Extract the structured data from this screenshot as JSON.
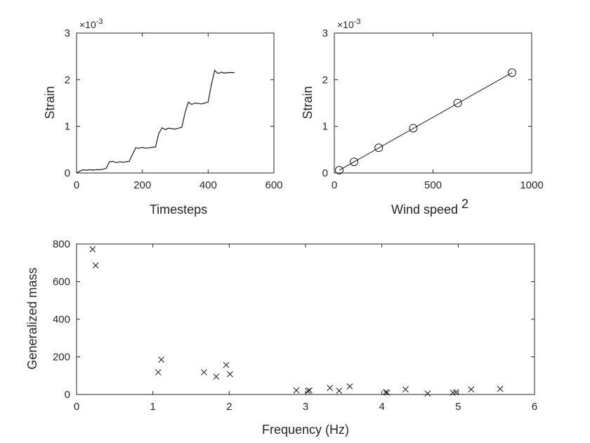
{
  "chart_data": [
    {
      "type": "line",
      "xlabel": "Timesteps",
      "ylabel": "Strain",
      "xlim": [
        0,
        600
      ],
      "ylim": [
        0,
        3
      ],
      "xticks": [
        "0",
        "200",
        "400",
        "600"
      ],
      "yticks": [
        "0",
        "1",
        "2",
        "3"
      ],
      "exponent": {
        "base": "×10",
        "power": "-3"
      },
      "scale": 0.001,
      "series": [
        {
          "x": [
            0,
            10,
            20,
            30,
            40,
            50,
            60,
            70,
            80,
            90,
            100,
            110,
            120,
            130,
            140,
            150,
            160,
            170,
            180,
            190,
            200,
            210,
            220,
            230,
            240,
            250,
            260,
            270,
            280,
            290,
            300,
            310,
            320,
            330,
            340,
            350,
            360,
            370,
            380,
            390,
            400,
            410,
            420,
            430,
            440,
            450,
            460,
            470,
            480
          ],
          "y": [
            0.0,
            0.04,
            0.07,
            0.06,
            0.07,
            0.06,
            0.07,
            0.07,
            0.08,
            0.1,
            0.24,
            0.25,
            0.22,
            0.24,
            0.23,
            0.24,
            0.25,
            0.4,
            0.54,
            0.53,
            0.55,
            0.53,
            0.54,
            0.55,
            0.56,
            0.85,
            0.97,
            0.93,
            0.96,
            0.95,
            0.94,
            0.96,
            0.98,
            1.3,
            1.52,
            1.47,
            1.5,
            1.49,
            1.48,
            1.5,
            1.52,
            1.9,
            2.2,
            2.13,
            2.16,
            2.14,
            2.15,
            2.15,
            2.15
          ]
        }
      ]
    },
    {
      "type": "scatter",
      "xlabel": "Wind speed",
      "xlabel_sup": "2",
      "ylabel": "Strain",
      "xlim": [
        0,
        1000
      ],
      "ylim": [
        0,
        3
      ],
      "xticks": [
        "0",
        "500",
        "1000"
      ],
      "yticks": [
        "0",
        "1",
        "2",
        "3"
      ],
      "exponent": {
        "base": "×10",
        "power": "-3"
      },
      "scale": 0.001,
      "marker": "circle",
      "points": {
        "x": [
          25,
          100,
          225,
          400,
          625,
          900
        ],
        "y": [
          0.06,
          0.24,
          0.54,
          0.96,
          1.5,
          2.15
        ]
      },
      "fit_line": {
        "x": [
          25,
          900
        ],
        "y": [
          0.06,
          2.15
        ]
      }
    },
    {
      "type": "scatter",
      "xlabel": "Frequency (Hz)",
      "ylabel": "Generalized mass",
      "xlim": [
        0,
        6
      ],
      "ylim": [
        0,
        800
      ],
      "xticks": [
        "0",
        "1",
        "2",
        "3",
        "4",
        "5",
        "6"
      ],
      "yticks": [
        "0",
        "200",
        "400",
        "600",
        "800"
      ],
      "marker": "x",
      "points": {
        "x": [
          0.21,
          0.25,
          1.07,
          1.11,
          1.67,
          1.83,
          1.96,
          2.01,
          2.88,
          3.03,
          3.05,
          3.32,
          3.44,
          3.58,
          4.05,
          4.07,
          4.31,
          4.6,
          4.93,
          4.97,
          5.17,
          5.55
        ],
        "y": [
          772,
          686,
          118,
          185,
          118,
          95,
          157,
          108,
          22,
          18,
          22,
          35,
          20,
          43,
          12,
          10,
          27,
          5,
          10,
          12,
          27,
          30
        ]
      }
    }
  ]
}
